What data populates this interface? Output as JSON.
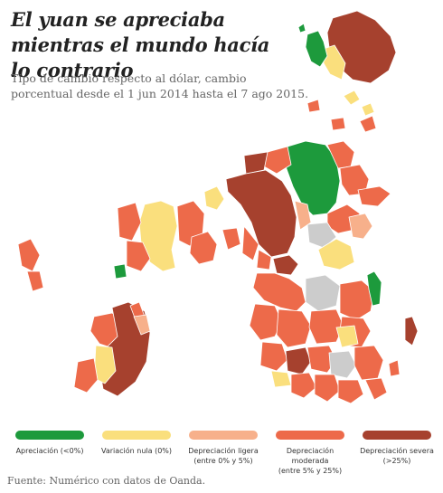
{
  "title": "El yuan se apreciaba mientras el mundo hacía lo contrario",
  "subtitle": "Tipo de cambio respecto al dólar, cambio porcentual desde el 1 jun 2014 hasta el 7 ago 2015.",
  "source": "Fuente: Numérico con datos de Oanda.",
  "colors": {
    "apreciacion": "#1d9a3c",
    "nula": "#fadf7d",
    "ligera": "#f7b08b",
    "moderada": "#ed6a4a",
    "severa": "#a6412e",
    "sin_datos": "#cccccc"
  },
  "legend": [
    {
      "key": "apreciacion",
      "label": "Apreciación (<0%)",
      "color": "#1d9a3c"
    },
    {
      "key": "nula",
      "label": "Variación nula (0%)",
      "color": "#fadf7d"
    },
    {
      "key": "ligera",
      "label": "Depreciación ligera\n(entre 0% y 5%)",
      "color": "#f7b08b"
    },
    {
      "key": "moderada",
      "label": "Depreciación moderada\n(entre 5% y 25%)",
      "color": "#ed6a4a"
    },
    {
      "key": "severa",
      "label": "Depreciación severa\n(>25%)",
      "color": "#a6412e"
    }
  ]
}
